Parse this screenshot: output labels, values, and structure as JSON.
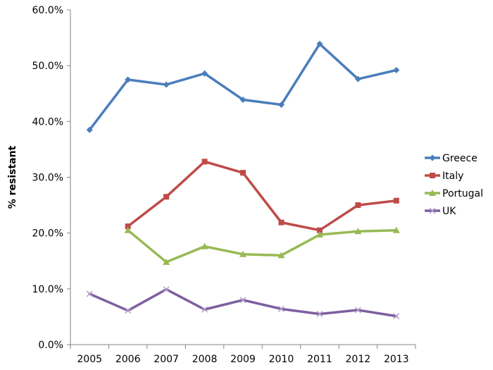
{
  "chart_data": {
    "type": "line",
    "title": "",
    "xlabel": "",
    "ylabel": "% resistant",
    "categories": [
      "2005",
      "2006",
      "2007",
      "2008",
      "2009",
      "2010",
      "2011",
      "2012",
      "2013"
    ],
    "ylim": [
      0,
      60
    ],
    "yticks": [
      "0.0%",
      "10.0%",
      "20.0%",
      "30.0%",
      "40.0%",
      "50.0%",
      "60.0%"
    ],
    "grid": false,
    "legend_position": "right",
    "series": [
      {
        "name": "Greece",
        "color": "#4A7EBB",
        "marker": "diamond",
        "values": [
          38.5,
          47.5,
          46.6,
          48.6,
          43.9,
          43.0,
          53.9,
          47.6,
          49.2
        ]
      },
      {
        "name": "Italy",
        "color": "#BE4B48",
        "marker": "square",
        "values": [
          null,
          21.2,
          26.5,
          32.8,
          30.8,
          21.9,
          20.5,
          25.0,
          25.8
        ]
      },
      {
        "name": "Portugal",
        "color": "#98B954",
        "marker": "triangle",
        "values": [
          null,
          20.5,
          14.8,
          17.6,
          16.2,
          16.0,
          19.7,
          20.3,
          20.5
        ]
      },
      {
        "name": "UK",
        "color": "#7D5FA0",
        "marker": "x",
        "values": [
          9.1,
          6.1,
          9.9,
          6.3,
          8.0,
          6.4,
          5.5,
          6.2,
          5.1
        ]
      }
    ]
  }
}
